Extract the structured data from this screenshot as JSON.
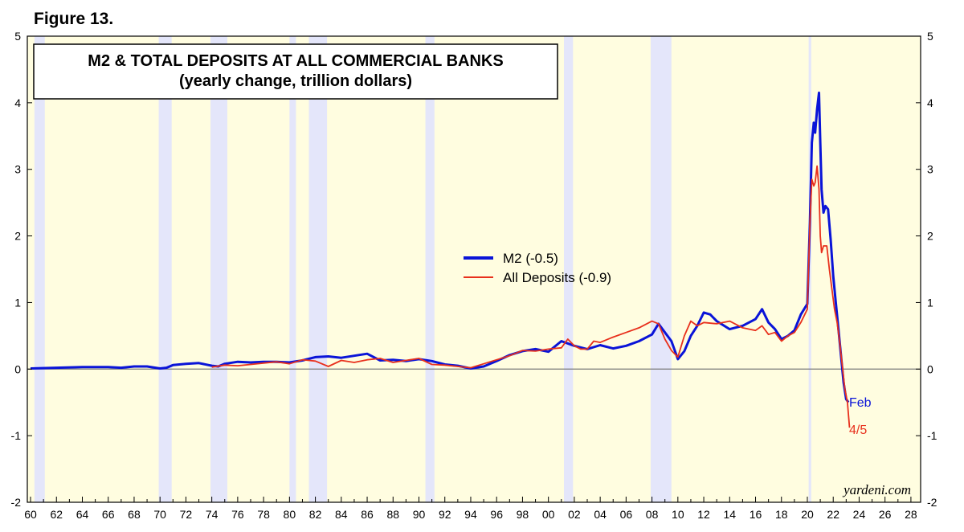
{
  "figure_label": "Figure 13.",
  "credit": "yardeni.com",
  "colors": {
    "plot_background": "#fffde0",
    "recession": "#e4e6fa",
    "m2": "#0a14d8",
    "deposits": "#e8301c",
    "zero_line": "#7a7a7a"
  },
  "chart_data": {
    "type": "line",
    "title": "M2 & TOTAL DEPOSITS AT ALL COMMERCIAL BANKS",
    "subtitle": "(yearly change, trillion dollars)",
    "xlabel": "",
    "ylabel": "",
    "xlim": [
      1959.75,
      2028.75
    ],
    "ylim": [
      -2,
      5
    ],
    "x_ticks": [
      1960,
      1962,
      1964,
      1966,
      1968,
      1970,
      1972,
      1974,
      1976,
      1978,
      1980,
      1982,
      1984,
      1986,
      1988,
      1990,
      1992,
      1994,
      1996,
      1998,
      2000,
      2002,
      2004,
      2006,
      2008,
      2010,
      2012,
      2014,
      2016,
      2018,
      2020,
      2022,
      2024,
      2026,
      2028
    ],
    "x_tick_labels": [
      "60",
      "62",
      "64",
      "66",
      "68",
      "70",
      "72",
      "74",
      "76",
      "78",
      "80",
      "82",
      "84",
      "86",
      "88",
      "90",
      "92",
      "94",
      "96",
      "98",
      "00",
      "02",
      "04",
      "06",
      "08",
      "10",
      "12",
      "14",
      "16",
      "18",
      "20",
      "22",
      "24",
      "26",
      "28"
    ],
    "y_ticks": [
      -2,
      -1,
      0,
      1,
      2,
      3,
      4,
      5
    ],
    "y_tick_labels": [
      "-2",
      "-1",
      "0",
      "1",
      "2",
      "3",
      "4",
      "5"
    ],
    "grid": false,
    "legend_position": "center",
    "recessions": [
      [
        1960.3,
        1961.1
      ],
      [
        1969.9,
        1970.9
      ],
      [
        1973.9,
        1975.2
      ],
      [
        1980.0,
        1980.5
      ],
      [
        1981.5,
        1982.9
      ],
      [
        1990.5,
        1991.2
      ],
      [
        2001.2,
        2001.9
      ],
      [
        2007.9,
        2009.5
      ],
      [
        2020.1,
        2020.3
      ]
    ],
    "series": [
      {
        "name": "M2 (-0.5)",
        "end_label": "Feb",
        "x": [
          1960,
          1962,
          1964,
          1966,
          1967,
          1968,
          1969,
          1970,
          1970.5,
          1971,
          1972,
          1973,
          1974,
          1974.5,
          1975,
          1976,
          1977,
          1978,
          1979,
          1980,
          1981,
          1982,
          1983,
          1984,
          1985,
          1986,
          1987,
          1988,
          1989,
          1990,
          1991,
          1992,
          1993,
          1994,
          1995,
          1996,
          1997,
          1998,
          1999,
          2000,
          2001,
          2002,
          2003,
          2004,
          2005,
          2006,
          2007,
          2008,
          2008.5,
          2009,
          2009.5,
          2010,
          2010.5,
          2011,
          2011.5,
          2012,
          2012.5,
          2013,
          2014,
          2015,
          2016,
          2016.5,
          2017,
          2017.5,
          2018,
          2018.5,
          2019,
          2019.5,
          2020,
          2020.2,
          2020.35,
          2020.5,
          2020.6,
          2020.75,
          2020.9,
          2021.0,
          2021.1,
          2021.25,
          2021.4,
          2021.6,
          2021.8,
          2022.0,
          2022.2,
          2022.4,
          2022.6,
          2022.8,
          2023.0,
          2023.17
        ],
        "values": [
          0.01,
          0.02,
          0.03,
          0.03,
          0.02,
          0.04,
          0.04,
          0.01,
          0.02,
          0.06,
          0.08,
          0.09,
          0.05,
          0.04,
          0.08,
          0.11,
          0.1,
          0.11,
          0.11,
          0.1,
          0.13,
          0.18,
          0.19,
          0.17,
          0.2,
          0.23,
          0.13,
          0.14,
          0.12,
          0.15,
          0.12,
          0.07,
          0.05,
          0.01,
          0.04,
          0.12,
          0.21,
          0.27,
          0.3,
          0.26,
          0.42,
          0.35,
          0.3,
          0.36,
          0.31,
          0.35,
          0.42,
          0.52,
          0.68,
          0.55,
          0.42,
          0.15,
          0.27,
          0.5,
          0.65,
          0.85,
          0.82,
          0.72,
          0.6,
          0.65,
          0.75,
          0.9,
          0.7,
          0.6,
          0.45,
          0.5,
          0.58,
          0.82,
          0.98,
          2.2,
          3.4,
          3.7,
          3.55,
          3.9,
          4.15,
          3.4,
          2.7,
          2.35,
          2.45,
          2.4,
          1.95,
          1.4,
          1.0,
          0.6,
          0.2,
          -0.2,
          -0.45,
          -0.5
        ]
      },
      {
        "name": "All Deposits (-0.9)",
        "end_label": "4/5",
        "x": [
          1974,
          1975,
          1976,
          1977,
          1978,
          1979,
          1980,
          1981,
          1982,
          1983,
          1984,
          1985,
          1986,
          1987,
          1988,
          1989,
          1990,
          1991,
          1992,
          1993,
          1994,
          1995,
          1996,
          1997,
          1998,
          1999,
          2000,
          2001,
          2001.5,
          2002,
          2002.5,
          2003,
          2003.5,
          2004,
          2005,
          2006,
          2007,
          2008,
          2008.5,
          2009,
          2009.5,
          2010,
          2010.5,
          2011,
          2011.5,
          2012,
          2013,
          2014,
          2015,
          2016,
          2016.5,
          2017,
          2017.5,
          2018,
          2018.5,
          2019,
          2019.5,
          2020,
          2020.2,
          2020.35,
          2020.5,
          2020.6,
          2020.75,
          2020.9,
          2021.0,
          2021.1,
          2021.25,
          2021.5,
          2021.7,
          2021.9,
          2022.1,
          2022.3,
          2022.5,
          2022.7,
          2022.9,
          2023.1,
          2023.26
        ],
        "values": [
          0.03,
          0.06,
          0.05,
          0.07,
          0.09,
          0.11,
          0.08,
          0.14,
          0.12,
          0.04,
          0.13,
          0.1,
          0.14,
          0.16,
          0.1,
          0.13,
          0.16,
          0.07,
          0.06,
          0.04,
          0.02,
          0.08,
          0.14,
          0.2,
          0.28,
          0.27,
          0.3,
          0.32,
          0.45,
          0.35,
          0.3,
          0.3,
          0.42,
          0.4,
          0.48,
          0.55,
          0.62,
          0.72,
          0.68,
          0.45,
          0.28,
          0.18,
          0.5,
          0.72,
          0.65,
          0.7,
          0.68,
          0.72,
          0.62,
          0.58,
          0.65,
          0.52,
          0.55,
          0.42,
          0.5,
          0.55,
          0.7,
          0.9,
          2.2,
          2.85,
          2.75,
          2.8,
          3.05,
          2.7,
          2.0,
          1.75,
          1.85,
          1.85,
          1.5,
          1.2,
          0.9,
          0.7,
          0.4,
          0.05,
          -0.3,
          -0.5,
          -0.88
        ]
      }
    ]
  }
}
